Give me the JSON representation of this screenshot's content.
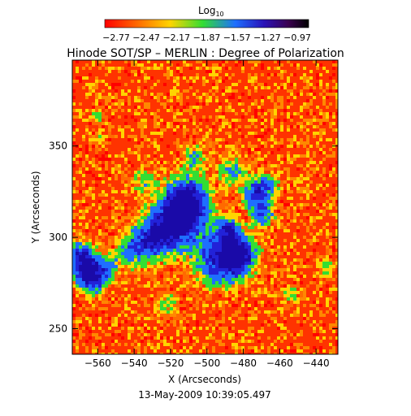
{
  "figure": {
    "title": "Hinode SOT/SP – MERLIN : Degree of Polarization",
    "timestamp": "13-May-2009 10:39:05.497"
  },
  "colorbar": {
    "label": "Log",
    "label_subscript": "10",
    "ticks": [
      "−2.77",
      "−2.47",
      "−2.17",
      "−1.87",
      "−1.57",
      "−1.27",
      "−0.97"
    ],
    "palette": [
      "#ff0000",
      "#ff6a00",
      "#ffd400",
      "#33dd33",
      "#1e6fff",
      "#2a12b8",
      "#3a0050",
      "#000000"
    ]
  },
  "chart_data": {
    "type": "heatmap",
    "title": "Hinode SOT/SP – MERLIN : Degree of Polarization",
    "xlabel": "X (Arcseconds)",
    "ylabel": "Y (Arcseconds)",
    "x_ticks": [
      -560,
      -540,
      -520,
      -500,
      -480,
      -460,
      -440
    ],
    "y_ticks": [
      250,
      300,
      350
    ],
    "xlim": [
      -574,
      -428
    ],
    "ylim": [
      236,
      397
    ],
    "value_range": [
      -2.77,
      -0.97
    ],
    "value_scale": "log10",
    "colorbar_position": "top"
  }
}
